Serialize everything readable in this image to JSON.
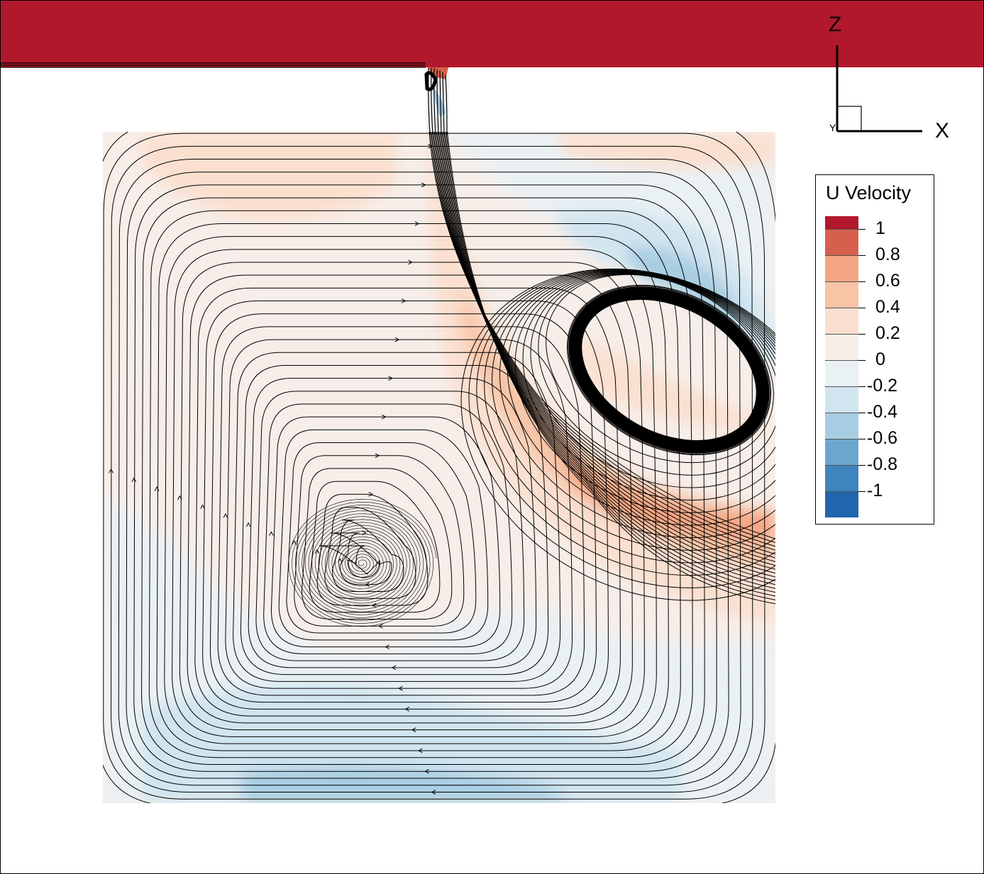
{
  "axes": {
    "z_label": "Z",
    "x_label": "X",
    "y_label": "Y"
  },
  "legend": {
    "title": "U Velocity",
    "levels": [
      "1",
      "0.8",
      "0.6",
      "0.4",
      "0.2",
      "0",
      "-0.2",
      "-0.4",
      "-0.6",
      "-0.8",
      "-1"
    ],
    "colors": [
      "#b2182b",
      "#d6604d",
      "#f4a582",
      "#f7c4a6",
      "#fbe0d0",
      "#f7eee9",
      "#eaf1f4",
      "#d1e5f0",
      "#a8cde2",
      "#6ba6cf",
      "#3f84bd",
      "#2166ac"
    ]
  },
  "colors": {
    "lid": "#b2182b",
    "streamline": "#000000"
  }
}
